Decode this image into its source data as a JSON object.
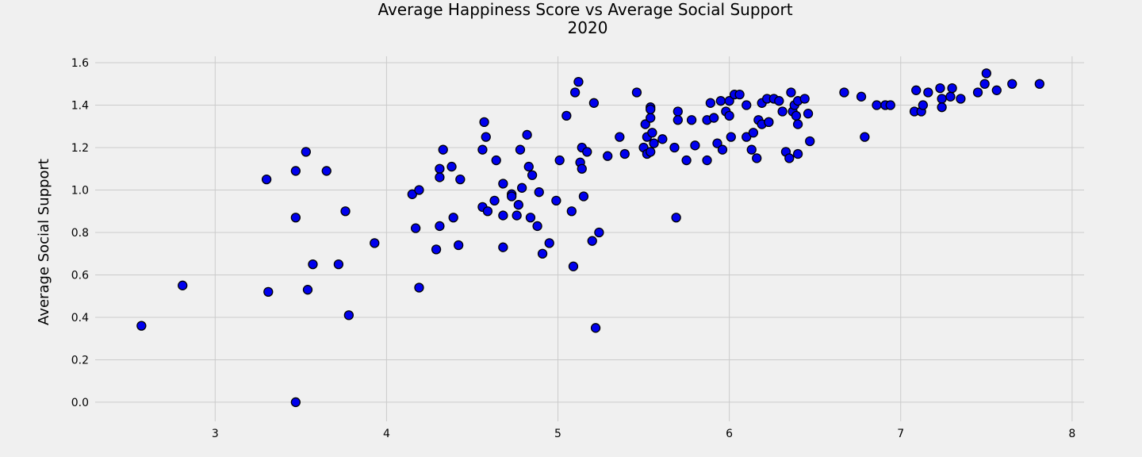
{
  "chart_data": {
    "type": "scatter",
    "title_line1": "Average Happiness Score vs Average Social Support",
    "title_line2": "2020",
    "xlabel": "",
    "ylabel": "Average Social Support",
    "xlim": [
      2.3,
      8.07
    ],
    "ylim": [
      -0.09,
      1.63
    ],
    "x_ticks": [
      3,
      4,
      5,
      6,
      7,
      8
    ],
    "y_ticks": [
      0.0,
      0.2,
      0.4,
      0.6,
      0.8,
      1.0,
      1.2,
      1.4,
      1.6
    ],
    "y_tick_labels": [
      "0.0",
      "0.2",
      "0.4",
      "0.6",
      "0.8",
      "1.0",
      "1.2",
      "1.4",
      "1.6"
    ],
    "grid": true,
    "marker_color": "#0000ee",
    "points": [
      {
        "x": 2.57,
        "y": 0.36
      },
      {
        "x": 2.81,
        "y": 0.55
      },
      {
        "x": 3.3,
        "y": 1.05
      },
      {
        "x": 3.31,
        "y": 0.52
      },
      {
        "x": 3.47,
        "y": 0.87
      },
      {
        "x": 3.47,
        "y": 1.09
      },
      {
        "x": 3.47,
        "y": 0.0
      },
      {
        "x": 3.53,
        "y": 1.18
      },
      {
        "x": 3.54,
        "y": 0.53
      },
      {
        "x": 3.57,
        "y": 0.65
      },
      {
        "x": 3.65,
        "y": 1.09
      },
      {
        "x": 3.72,
        "y": 0.65
      },
      {
        "x": 3.76,
        "y": 0.9
      },
      {
        "x": 3.78,
        "y": 0.41
      },
      {
        "x": 3.93,
        "y": 0.75
      },
      {
        "x": 4.15,
        "y": 0.98
      },
      {
        "x": 4.17,
        "y": 0.82
      },
      {
        "x": 4.19,
        "y": 1.0
      },
      {
        "x": 4.19,
        "y": 0.54
      },
      {
        "x": 4.29,
        "y": 0.72
      },
      {
        "x": 4.31,
        "y": 1.1
      },
      {
        "x": 4.31,
        "y": 1.06
      },
      {
        "x": 4.31,
        "y": 0.83
      },
      {
        "x": 4.33,
        "y": 1.19
      },
      {
        "x": 4.38,
        "y": 1.11
      },
      {
        "x": 4.39,
        "y": 0.87
      },
      {
        "x": 4.42,
        "y": 0.74
      },
      {
        "x": 4.43,
        "y": 1.05
      },
      {
        "x": 4.56,
        "y": 1.19
      },
      {
        "x": 4.56,
        "y": 0.92
      },
      {
        "x": 4.57,
        "y": 1.32
      },
      {
        "x": 4.58,
        "y": 1.25
      },
      {
        "x": 4.59,
        "y": 0.9
      },
      {
        "x": 4.63,
        "y": 0.95
      },
      {
        "x": 4.64,
        "y": 1.14
      },
      {
        "x": 4.68,
        "y": 1.03
      },
      {
        "x": 4.68,
        "y": 0.88
      },
      {
        "x": 4.68,
        "y": 0.73
      },
      {
        "x": 4.73,
        "y": 0.98
      },
      {
        "x": 4.73,
        "y": 0.97
      },
      {
        "x": 4.76,
        "y": 0.88
      },
      {
        "x": 4.77,
        "y": 0.93
      },
      {
        "x": 4.78,
        "y": 1.19
      },
      {
        "x": 4.79,
        "y": 1.01
      },
      {
        "x": 4.82,
        "y": 1.26
      },
      {
        "x": 4.83,
        "y": 1.11
      },
      {
        "x": 4.84,
        "y": 0.87
      },
      {
        "x": 4.85,
        "y": 1.07
      },
      {
        "x": 4.88,
        "y": 0.83
      },
      {
        "x": 4.89,
        "y": 0.99
      },
      {
        "x": 4.91,
        "y": 0.7
      },
      {
        "x": 4.95,
        "y": 0.75
      },
      {
        "x": 4.99,
        "y": 0.95
      },
      {
        "x": 5.01,
        "y": 1.14
      },
      {
        "x": 5.05,
        "y": 1.35
      },
      {
        "x": 5.08,
        "y": 0.9
      },
      {
        "x": 5.09,
        "y": 0.64
      },
      {
        "x": 5.1,
        "y": 1.46
      },
      {
        "x": 5.12,
        "y": 1.51
      },
      {
        "x": 5.13,
        "y": 1.13
      },
      {
        "x": 5.14,
        "y": 1.2
      },
      {
        "x": 5.14,
        "y": 1.1
      },
      {
        "x": 5.15,
        "y": 0.97
      },
      {
        "x": 5.17,
        "y": 1.18
      },
      {
        "x": 5.2,
        "y": 0.76
      },
      {
        "x": 5.21,
        "y": 1.41
      },
      {
        "x": 5.22,
        "y": 0.35
      },
      {
        "x": 5.24,
        "y": 0.8
      },
      {
        "x": 5.29,
        "y": 1.16
      },
      {
        "x": 5.36,
        "y": 1.25
      },
      {
        "x": 5.39,
        "y": 1.17
      },
      {
        "x": 5.46,
        "y": 1.46
      },
      {
        "x": 5.5,
        "y": 1.2
      },
      {
        "x": 5.51,
        "y": 1.31
      },
      {
        "x": 5.52,
        "y": 1.25
      },
      {
        "x": 5.52,
        "y": 1.17
      },
      {
        "x": 5.54,
        "y": 1.18
      },
      {
        "x": 5.54,
        "y": 1.34
      },
      {
        "x": 5.54,
        "y": 1.39
      },
      {
        "x": 5.54,
        "y": 1.38
      },
      {
        "x": 5.55,
        "y": 1.27
      },
      {
        "x": 5.56,
        "y": 1.22
      },
      {
        "x": 5.61,
        "y": 1.24
      },
      {
        "x": 5.68,
        "y": 1.2
      },
      {
        "x": 5.69,
        "y": 0.87
      },
      {
        "x": 5.7,
        "y": 1.37
      },
      {
        "x": 5.7,
        "y": 1.33
      },
      {
        "x": 5.75,
        "y": 1.14
      },
      {
        "x": 5.78,
        "y": 1.33
      },
      {
        "x": 5.8,
        "y": 1.21
      },
      {
        "x": 5.87,
        "y": 1.14
      },
      {
        "x": 5.87,
        "y": 1.33
      },
      {
        "x": 5.89,
        "y": 1.41
      },
      {
        "x": 5.91,
        "y": 1.34
      },
      {
        "x": 5.93,
        "y": 1.22
      },
      {
        "x": 5.95,
        "y": 1.42
      },
      {
        "x": 5.96,
        "y": 1.19
      },
      {
        "x": 5.98,
        "y": 1.37
      },
      {
        "x": 6.0,
        "y": 1.35
      },
      {
        "x": 6.0,
        "y": 1.42
      },
      {
        "x": 6.01,
        "y": 1.25
      },
      {
        "x": 6.03,
        "y": 1.45
      },
      {
        "x": 6.06,
        "y": 1.45
      },
      {
        "x": 6.1,
        "y": 1.25
      },
      {
        "x": 6.1,
        "y": 1.4
      },
      {
        "x": 6.13,
        "y": 1.19
      },
      {
        "x": 6.14,
        "y": 1.27
      },
      {
        "x": 6.16,
        "y": 1.15
      },
      {
        "x": 6.17,
        "y": 1.33
      },
      {
        "x": 6.19,
        "y": 1.31
      },
      {
        "x": 6.19,
        "y": 1.41
      },
      {
        "x": 6.22,
        "y": 1.43
      },
      {
        "x": 6.23,
        "y": 1.32
      },
      {
        "x": 6.23,
        "y": 1.32
      },
      {
        "x": 6.26,
        "y": 1.43
      },
      {
        "x": 6.29,
        "y": 1.42
      },
      {
        "x": 6.31,
        "y": 1.37
      },
      {
        "x": 6.33,
        "y": 1.18
      },
      {
        "x": 6.35,
        "y": 1.15
      },
      {
        "x": 6.36,
        "y": 1.46
      },
      {
        "x": 6.37,
        "y": 1.37
      },
      {
        "x": 6.38,
        "y": 1.4
      },
      {
        "x": 6.39,
        "y": 1.35
      },
      {
        "x": 6.4,
        "y": 1.17
      },
      {
        "x": 6.4,
        "y": 1.31
      },
      {
        "x": 6.4,
        "y": 1.42
      },
      {
        "x": 6.44,
        "y": 1.43
      },
      {
        "x": 6.46,
        "y": 1.36
      },
      {
        "x": 6.47,
        "y": 1.23
      },
      {
        "x": 6.67,
        "y": 1.46
      },
      {
        "x": 6.77,
        "y": 1.44
      },
      {
        "x": 6.79,
        "y": 1.25
      },
      {
        "x": 6.86,
        "y": 1.4
      },
      {
        "x": 6.91,
        "y": 1.4
      },
      {
        "x": 6.94,
        "y": 1.4
      },
      {
        "x": 7.08,
        "y": 1.37
      },
      {
        "x": 7.09,
        "y": 1.47
      },
      {
        "x": 7.12,
        "y": 1.37
      },
      {
        "x": 7.13,
        "y": 1.4
      },
      {
        "x": 7.16,
        "y": 1.46
      },
      {
        "x": 7.23,
        "y": 1.48
      },
      {
        "x": 7.24,
        "y": 1.43
      },
      {
        "x": 7.24,
        "y": 1.39
      },
      {
        "x": 7.29,
        "y": 1.44
      },
      {
        "x": 7.3,
        "y": 1.48
      },
      {
        "x": 7.35,
        "y": 1.43
      },
      {
        "x": 7.45,
        "y": 1.46
      },
      {
        "x": 7.49,
        "y": 1.5
      },
      {
        "x": 7.5,
        "y": 1.55
      },
      {
        "x": 7.56,
        "y": 1.47
      },
      {
        "x": 7.65,
        "y": 1.5
      },
      {
        "x": 7.81,
        "y": 1.5
      }
    ]
  }
}
